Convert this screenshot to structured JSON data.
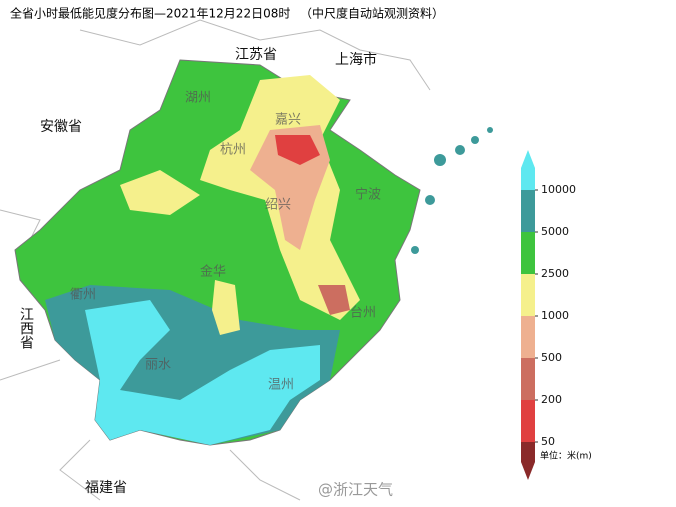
{
  "header": {
    "title": "全省小时最低能见度分布图—2021年12月22日08时",
    "source": "（中尺度自动站观测资料）"
  },
  "provinces": [
    "江苏省",
    "上海市",
    "安徽省",
    "江西省",
    "福建省"
  ],
  "cities": [
    "湖州",
    "嘉兴",
    "杭州",
    "绍兴",
    "宁波",
    "金华",
    "衢州",
    "台州",
    "丽水",
    "温州"
  ],
  "legend": {
    "ticks": [
      10000,
      5000,
      2500,
      1000,
      500,
      200,
      50
    ],
    "colors": [
      "#5ee8f0",
      "#3d9a9a",
      "#3ec43e",
      "#f5f08c",
      "#eeb090",
      "#cc6e60",
      "#e04040",
      "#8a2a2a"
    ],
    "unit": "单位：米(m)"
  },
  "watermark": "@浙江天气"
}
